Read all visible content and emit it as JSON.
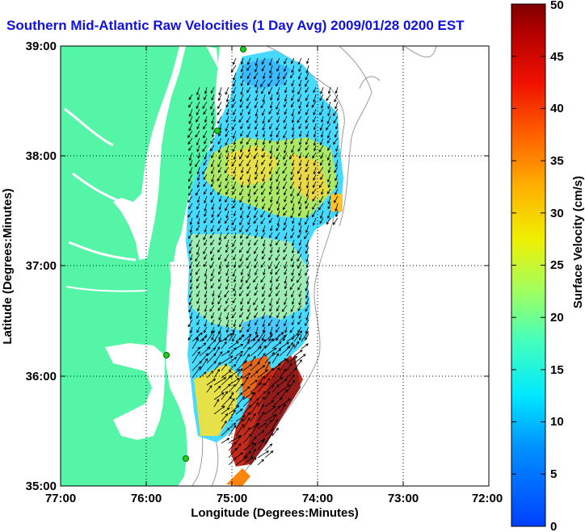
{
  "title": "Southern Mid-Atlantic Raw Velocities (1 Day Avg) 2009/01/28 0200 EST",
  "map": {
    "xlabel": "Longitude (Degrees:Minutes)",
    "ylabel": "Latitude (Degrees:Minutes)",
    "lon_ticks": [
      "77:00",
      "76:00",
      "75:00",
      "74:00",
      "73:00",
      "72:00"
    ],
    "lat_ticks": [
      "39:00",
      "38:00",
      "37:00",
      "36:00",
      "35:00"
    ],
    "lon_range": [
      -77,
      -72
    ],
    "lat_range": [
      35,
      39
    ],
    "land_color": "#55f5a8",
    "water_color": "#ffffff",
    "contour_color": "#9a9a9a",
    "grid": "dotted",
    "station_color": "#22cc22"
  },
  "colorbar": {
    "label": "Surface Velocity (cm/s)",
    "ticks": [
      "0",
      "5",
      "10",
      "15",
      "20",
      "25",
      "30",
      "35",
      "40",
      "45",
      "50"
    ],
    "range": [
      0,
      50
    ],
    "colormap": "jet"
  }
}
